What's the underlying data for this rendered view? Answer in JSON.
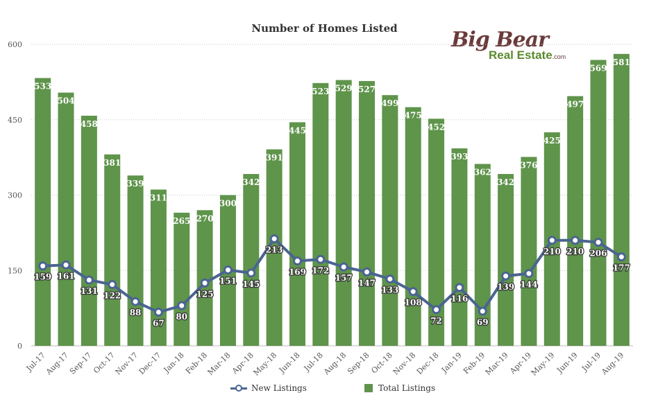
{
  "logo": {
    "line1": "Big Bear",
    "line2": "Real Estate",
    "suffix": ".com"
  },
  "chart_data": {
    "type": "bar+line",
    "title": "Number of Homes Listed",
    "categories": [
      "Jul-17",
      "Aug-17",
      "Sep-17",
      "Oct-17",
      "Nov-17",
      "Dec-17",
      "Jan-18",
      "Feb-18",
      "Mar-18",
      "Apr-18",
      "May-18",
      "Jun-18",
      "Jul-18",
      "Aug-18",
      "Sep-18",
      "Oct-18",
      "Nov-18",
      "Dec-18",
      "Jan-19",
      "Feb-19",
      "Mar-19",
      "Apr-19",
      "May-19",
      "Jun-19",
      "Jul-19",
      "Aug-19"
    ],
    "series": [
      {
        "name": "Total Listings",
        "type": "bar",
        "color": "#5f944b",
        "values": [
          533,
          504,
          458,
          381,
          339,
          311,
          265,
          270,
          300,
          342,
          391,
          445,
          523,
          529,
          527,
          499,
          475,
          452,
          393,
          362,
          342,
          376,
          425,
          497,
          569,
          581
        ]
      },
      {
        "name": "New Listings",
        "type": "line",
        "color": "#4a6491",
        "values": [
          159,
          161,
          131,
          122,
          88,
          67,
          80,
          125,
          151,
          145,
          213,
          169,
          172,
          157,
          147,
          133,
          108,
          72,
          116,
          69,
          139,
          144,
          210,
          210,
          206,
          177
        ]
      }
    ],
    "ylim": [
      0,
      600
    ],
    "yticks": [
      0,
      150,
      300,
      450,
      600
    ],
    "legend_position": "bottom",
    "grid": true
  }
}
